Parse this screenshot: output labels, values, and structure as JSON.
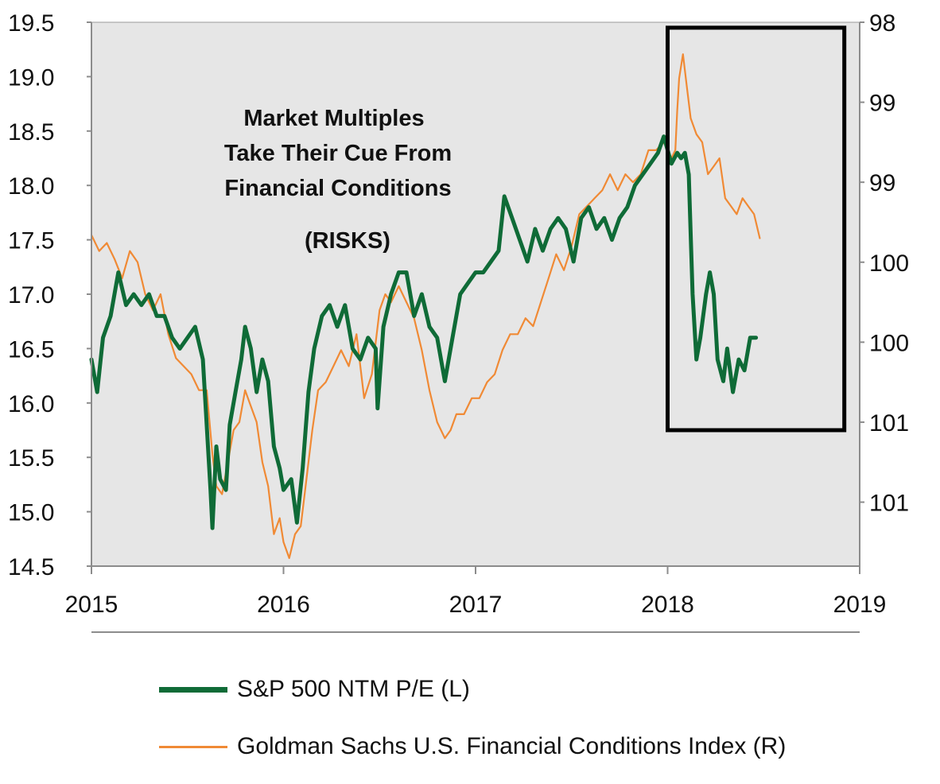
{
  "chart_data": {
    "type": "line",
    "title": "",
    "annotation": [
      "Market Multiples",
      "Take Their Cue From",
      "Financial Conditions",
      "(RISKS)"
    ],
    "x_ticks": [
      "2015",
      "2016",
      "2017",
      "2018",
      "2019"
    ],
    "xlim": [
      2015.0,
      2019.0
    ],
    "y_left": {
      "ylim": [
        14.5,
        19.5
      ],
      "ticks": [
        "14.5",
        "15.0",
        "15.5",
        "16.0",
        "16.5",
        "17.0",
        "17.5",
        "18.0",
        "18.5",
        "19.0",
        "19.5"
      ]
    },
    "y_right": {
      "ylim": [
        101.4,
        98.0
      ],
      "inverted": true,
      "tick_values": [
        98.0,
        98.5,
        99.0,
        99.5,
        100.0,
        100.5,
        101.0
      ],
      "ticks": [
        "98",
        "99",
        "99",
        "100",
        "100",
        "101",
        "101"
      ]
    },
    "grid": false,
    "background": "#e6e6e6",
    "highlight_box": {
      "x_start": 2018.0,
      "x_end": 2018.92,
      "y_left_low": 15.75,
      "y_left_high": 19.45
    },
    "series": [
      {
        "name": "S&P 500 NTM P/E (L)",
        "axis": "left",
        "color": "#0f6b37",
        "x": [
          2015.0,
          2015.03,
          2015.06,
          2015.1,
          2015.14,
          2015.18,
          2015.22,
          2015.26,
          2015.3,
          2015.34,
          2015.38,
          2015.42,
          2015.46,
          2015.5,
          2015.54,
          2015.58,
          2015.62,
          2015.63,
          2015.65,
          2015.67,
          2015.7,
          2015.72,
          2015.75,
          2015.78,
          2015.8,
          2015.83,
          2015.86,
          2015.89,
          2015.92,
          2015.95,
          2015.98,
          2016.0,
          2016.04,
          2016.07,
          2016.1,
          2016.13,
          2016.16,
          2016.2,
          2016.24,
          2016.28,
          2016.32,
          2016.36,
          2016.4,
          2016.44,
          2016.48,
          2016.49,
          2016.52,
          2016.56,
          2016.6,
          2016.64,
          2016.68,
          2016.72,
          2016.76,
          2016.8,
          2016.84,
          2016.88,
          2016.92,
          2016.96,
          2017.0,
          2017.04,
          2017.08,
          2017.12,
          2017.15,
          2017.19,
          2017.23,
          2017.27,
          2017.31,
          2017.35,
          2017.39,
          2017.43,
          2017.47,
          2017.51,
          2017.55,
          2017.59,
          2017.63,
          2017.67,
          2017.71,
          2017.75,
          2017.79,
          2017.83,
          2017.87,
          2017.91,
          2017.95,
          2017.98,
          2018.02,
          2018.05,
          2018.07,
          2018.09,
          2018.11,
          2018.13,
          2018.15,
          2018.17,
          2018.2,
          2018.22,
          2018.24,
          2018.26,
          2018.29,
          2018.31,
          2018.34,
          2018.37,
          2018.4,
          2018.43,
          2018.46
        ],
        "values": [
          16.4,
          16.1,
          16.6,
          16.8,
          17.2,
          16.9,
          17.0,
          16.9,
          17.0,
          16.8,
          16.8,
          16.6,
          16.5,
          16.6,
          16.7,
          16.4,
          15.2,
          14.85,
          15.6,
          15.3,
          15.2,
          15.8,
          16.1,
          16.4,
          16.7,
          16.5,
          16.1,
          16.4,
          16.2,
          15.6,
          15.4,
          15.2,
          15.3,
          14.9,
          15.4,
          16.1,
          16.5,
          16.8,
          16.9,
          16.7,
          16.9,
          16.5,
          16.4,
          16.6,
          16.5,
          15.95,
          16.7,
          17.0,
          17.2,
          17.2,
          16.8,
          17.0,
          16.7,
          16.6,
          16.2,
          16.6,
          17.0,
          17.1,
          17.2,
          17.2,
          17.3,
          17.4,
          17.9,
          17.7,
          17.5,
          17.3,
          17.6,
          17.4,
          17.6,
          17.7,
          17.6,
          17.3,
          17.7,
          17.8,
          17.6,
          17.7,
          17.5,
          17.7,
          17.8,
          18.0,
          18.1,
          18.2,
          18.3,
          18.45,
          18.2,
          18.3,
          18.25,
          18.3,
          18.1,
          17.0,
          16.4,
          16.6,
          17.0,
          17.2,
          17.0,
          16.4,
          16.2,
          16.5,
          16.1,
          16.4,
          16.3,
          16.6,
          16.6
        ]
      },
      {
        "name": "Goldman Sachs U.S. Financial Conditions Index (R)",
        "axis": "right",
        "color": "#f08a35",
        "x": [
          2015.0,
          2015.04,
          2015.08,
          2015.12,
          2015.16,
          2015.2,
          2015.24,
          2015.28,
          2015.32,
          2015.36,
          2015.4,
          2015.44,
          2015.48,
          2015.52,
          2015.56,
          2015.6,
          2015.63,
          2015.65,
          2015.68,
          2015.71,
          2015.74,
          2015.77,
          2015.8,
          2015.83,
          2015.86,
          2015.89,
          2015.92,
          2015.95,
          2015.98,
          2016.0,
          2016.03,
          2016.06,
          2016.09,
          2016.12,
          2016.15,
          2016.18,
          2016.22,
          2016.26,
          2016.3,
          2016.34,
          2016.38,
          2016.42,
          2016.46,
          2016.5,
          2016.53,
          2016.56,
          2016.6,
          2016.64,
          2016.68,
          2016.72,
          2016.76,
          2016.8,
          2016.84,
          2016.87,
          2016.9,
          2016.94,
          2016.98,
          2017.02,
          2017.06,
          2017.1,
          2017.14,
          2017.18,
          2017.22,
          2017.26,
          2017.3,
          2017.34,
          2017.38,
          2017.42,
          2017.46,
          2017.5,
          2017.54,
          2017.58,
          2017.62,
          2017.66,
          2017.7,
          2017.74,
          2017.78,
          2017.82,
          2017.86,
          2017.9,
          2017.94,
          2017.98,
          2018.02,
          2018.04,
          2018.05,
          2018.06,
          2018.08,
          2018.1,
          2018.12,
          2018.15,
          2018.18,
          2018.21,
          2018.24,
          2018.27,
          2018.3,
          2018.33,
          2018.36,
          2018.39,
          2018.42,
          2018.45,
          2018.48
        ],
        "values": [
          99.33,
          99.43,
          99.38,
          99.48,
          99.6,
          99.43,
          99.5,
          99.7,
          99.8,
          99.7,
          99.95,
          100.1,
          100.15,
          100.2,
          100.3,
          100.3,
          100.7,
          100.9,
          100.95,
          100.75,
          100.55,
          100.5,
          100.3,
          100.4,
          100.5,
          100.75,
          100.9,
          101.2,
          101.1,
          101.25,
          101.35,
          101.2,
          101.15,
          100.85,
          100.55,
          100.3,
          100.25,
          100.15,
          100.05,
          100.15,
          99.95,
          100.35,
          100.2,
          99.8,
          99.7,
          99.75,
          99.65,
          99.75,
          99.85,
          100.05,
          100.3,
          100.5,
          100.6,
          100.55,
          100.45,
          100.45,
          100.35,
          100.35,
          100.25,
          100.2,
          100.05,
          99.95,
          99.95,
          99.85,
          99.9,
          99.75,
          99.6,
          99.45,
          99.55,
          99.4,
          99.2,
          99.15,
          99.1,
          99.05,
          98.95,
          99.05,
          98.95,
          99.0,
          98.95,
          98.8,
          98.8,
          98.75,
          98.85,
          98.8,
          98.55,
          98.35,
          98.2,
          98.4,
          98.6,
          98.7,
          98.75,
          98.95,
          98.9,
          98.85,
          99.1,
          99.15,
          99.2,
          99.1,
          99.15,
          99.2,
          99.35
        ]
      }
    ]
  }
}
